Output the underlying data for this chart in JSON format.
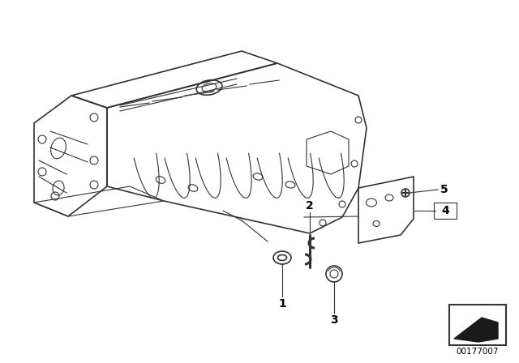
{
  "bg_color": "#ffffff",
  "line_color": "#333333",
  "label_color": "#000000",
  "diagram_id": "00177007",
  "figsize": [
    6.4,
    4.48
  ],
  "dpi": 100
}
